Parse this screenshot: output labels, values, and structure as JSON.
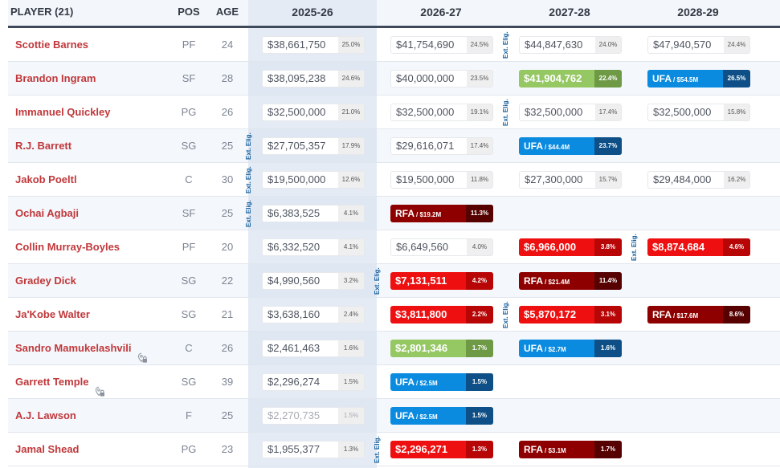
{
  "header": {
    "player": "PLAYER (21)",
    "pos": "POS",
    "age": "AGE",
    "seasons": [
      "2025-26",
      "2026-27",
      "2027-28",
      "2028-29"
    ]
  },
  "ext_label": "Ext. Elig.",
  "colors": {
    "name": "#c0383b",
    "green": "#95c763",
    "red": "#ee0f10",
    "ufa": "#0a8be0",
    "rfa": "#8e0000",
    "ext": "#15609e"
  },
  "rows": [
    {
      "name": "Scottie Barnes",
      "pos": "PF",
      "age": "24",
      "icon": "",
      "cells": [
        {
          "type": "std",
          "amt": "$38,661,750",
          "pct": "25.0%"
        },
        {
          "type": "std",
          "amt": "$41,754,690",
          "pct": "24.5%"
        },
        {
          "type": "std",
          "amt": "$44,847,630",
          "pct": "24.0%",
          "ext": true
        },
        {
          "type": "std",
          "amt": "$47,940,570",
          "pct": "24.4%"
        }
      ]
    },
    {
      "name": "Brandon Ingram",
      "pos": "SF",
      "age": "28",
      "icon": "",
      "cells": [
        {
          "type": "std",
          "amt": "$38,095,238",
          "pct": "24.6%"
        },
        {
          "type": "std",
          "amt": "$40,000,000",
          "pct": "23.5%"
        },
        {
          "type": "green",
          "amt": "$41,904,762",
          "pct": "22.4%"
        },
        {
          "type": "ufa",
          "fa": "UFA",
          "faval": "/ $54.5M",
          "pct": "26.5%"
        }
      ]
    },
    {
      "name": "Immanuel Quickley",
      "pos": "PG",
      "age": "26",
      "icon": "",
      "cells": [
        {
          "type": "std",
          "amt": "$32,500,000",
          "pct": "21.0%"
        },
        {
          "type": "std",
          "amt": "$32,500,000",
          "pct": "19.1%"
        },
        {
          "type": "std",
          "amt": "$32,500,000",
          "pct": "17.4%",
          "ext": true
        },
        {
          "type": "std",
          "amt": "$32,500,000",
          "pct": "15.8%"
        }
      ]
    },
    {
      "name": "R.J. Barrett",
      "pos": "SG",
      "age": "25",
      "icon": "",
      "cells": [
        {
          "type": "std",
          "amt": "$27,705,357",
          "pct": "17.9%",
          "ext": true
        },
        {
          "type": "std",
          "amt": "$29,616,071",
          "pct": "17.4%"
        },
        {
          "type": "ufa",
          "fa": "UFA",
          "faval": "/ $44.4M",
          "pct": "23.7%"
        },
        null
      ]
    },
    {
      "name": "Jakob Poeltl",
      "pos": "C",
      "age": "30",
      "icon": "",
      "cells": [
        {
          "type": "std",
          "amt": "$19,500,000",
          "pct": "12.6%",
          "ext": true
        },
        {
          "type": "std",
          "amt": "$19,500,000",
          "pct": "11.8%"
        },
        {
          "type": "std",
          "amt": "$27,300,000",
          "pct": "15.7%"
        },
        {
          "type": "std",
          "amt": "$29,484,000",
          "pct": "16.2%"
        }
      ]
    },
    {
      "name": "Ochai Agbaji",
      "pos": "SF",
      "age": "25",
      "icon": "",
      "cells": [
        {
          "type": "std",
          "amt": "$6,383,525",
          "pct": "4.1%",
          "ext": true
        },
        {
          "type": "rfa",
          "fa": "RFA",
          "faval": "/ $19.2M",
          "pct": "11.3%"
        },
        null,
        null
      ]
    },
    {
      "name": "Collin Murray-Boyles",
      "pos": "PF",
      "age": "20",
      "icon": "",
      "cells": [
        {
          "type": "std",
          "amt": "$6,332,520",
          "pct": "4.1%"
        },
        {
          "type": "std",
          "amt": "$6,649,560",
          "pct": "4.0%"
        },
        {
          "type": "red",
          "amt": "$6,966,000",
          "pct": "3.8%"
        },
        {
          "type": "red",
          "amt": "$8,874,684",
          "pct": "4.6%",
          "ext": true
        }
      ]
    },
    {
      "name": "Gradey Dick",
      "pos": "SG",
      "age": "22",
      "icon": "",
      "cells": [
        {
          "type": "std",
          "amt": "$4,990,560",
          "pct": "3.2%"
        },
        {
          "type": "red",
          "amt": "$7,131,511",
          "pct": "4.2%",
          "ext": true
        },
        {
          "type": "rfa",
          "fa": "RFA",
          "faval": "/ $21.4M",
          "pct": "11.4%"
        },
        null
      ]
    },
    {
      "name": "Ja'Kobe Walter",
      "pos": "SG",
      "age": "21",
      "icon": "",
      "cells": [
        {
          "type": "std",
          "amt": "$3,638,160",
          "pct": "2.4%"
        },
        {
          "type": "red",
          "amt": "$3,811,800",
          "pct": "2.2%"
        },
        {
          "type": "red",
          "amt": "$5,870,172",
          "pct": "3.1%",
          "ext": true
        },
        {
          "type": "rfa",
          "fa": "RFA",
          "faval": "/ $17.6M",
          "pct": "8.6%"
        }
      ]
    },
    {
      "name": "Sandro Mamukelashvili",
      "pos": "C",
      "age": "26",
      "icon": "pin-lock-icon",
      "cells": [
        {
          "type": "std",
          "amt": "$2,461,463",
          "pct": "1.6%"
        },
        {
          "type": "green",
          "amt": "$2,801,346",
          "pct": "1.7%"
        },
        {
          "type": "ufa",
          "fa": "UFA",
          "faval": "/ $2.7M",
          "pct": "1.6%"
        },
        null
      ]
    },
    {
      "name": "Garrett Temple",
      "pos": "SG",
      "age": "39",
      "icon": "pin-lock-icon",
      "cells": [
        {
          "type": "std",
          "amt": "$2,296,274",
          "pct": "1.5%"
        },
        {
          "type": "ufa",
          "fa": "UFA",
          "faval": "/ $2.5M",
          "pct": "1.5%"
        },
        null,
        null
      ]
    },
    {
      "name": "A.J. Lawson",
      "pos": "F",
      "age": "25",
      "icon": "",
      "cells": [
        {
          "type": "std",
          "faded": true,
          "amt": "$2,270,735",
          "pct": "1.5%"
        },
        {
          "type": "ufa",
          "fa": "UFA",
          "faval": "/ $2.5M",
          "pct": "1.5%"
        },
        null,
        null
      ]
    },
    {
      "name": "Jamal Shead",
      "pos": "PG",
      "age": "23",
      "icon": "",
      "cells": [
        {
          "type": "std",
          "amt": "$1,955,377",
          "pct": "1.3%"
        },
        {
          "type": "red",
          "amt": "$2,296,271",
          "pct": "1.3%",
          "ext": true
        },
        {
          "type": "rfa",
          "fa": "RFA",
          "faval": "/ $3.1M",
          "pct": "1.7%"
        },
        null
      ]
    }
  ]
}
